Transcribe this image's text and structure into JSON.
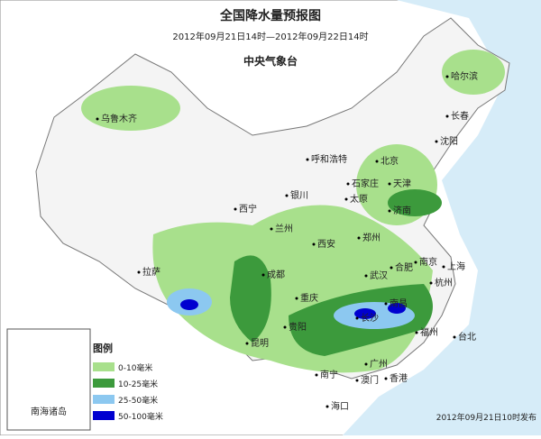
{
  "header": {
    "title": "全国降水量预报图",
    "period": "2012年09月21日14时—2012年09月22日14时",
    "issuer": "中央气象台"
  },
  "cities": [
    {
      "label": "哈尔滨"
    },
    {
      "label": "长春"
    },
    {
      "label": "沈阳"
    },
    {
      "label": "乌鲁木齐"
    },
    {
      "label": "呼和浩特"
    },
    {
      "label": "北京"
    },
    {
      "label": "天津"
    },
    {
      "label": "石家庄"
    },
    {
      "label": "太原"
    },
    {
      "label": "济南"
    },
    {
      "label": "银川"
    },
    {
      "label": "西宁"
    },
    {
      "label": "兰州"
    },
    {
      "label": "西安"
    },
    {
      "label": "郑州"
    },
    {
      "label": "拉萨"
    },
    {
      "label": "成都"
    },
    {
      "label": "重庆"
    },
    {
      "label": "武汉"
    },
    {
      "label": "合肥"
    },
    {
      "label": "南京"
    },
    {
      "label": "上海"
    },
    {
      "label": "杭州"
    },
    {
      "label": "南昌"
    },
    {
      "label": "长沙"
    },
    {
      "label": "贵阳"
    },
    {
      "label": "昆明"
    },
    {
      "label": "福州"
    },
    {
      "label": "台北"
    },
    {
      "label": "广州"
    },
    {
      "label": "澳门"
    },
    {
      "label": "香港"
    },
    {
      "label": "南宁"
    },
    {
      "label": "海口"
    }
  ],
  "legend": {
    "title": "图例",
    "items": [
      {
        "label": "0-10毫米",
        "color": "#a8e08c"
      },
      {
        "label": "10-25毫米",
        "color": "#3c9a3c"
      },
      {
        "label": "25-50毫米",
        "color": "#8cc8f0"
      },
      {
        "label": "50-100毫米",
        "color": "#0000d0"
      }
    ]
  },
  "inset": {
    "label": "南海诸岛"
  },
  "footer": {
    "issued": "2012年09月21日10时发布"
  }
}
